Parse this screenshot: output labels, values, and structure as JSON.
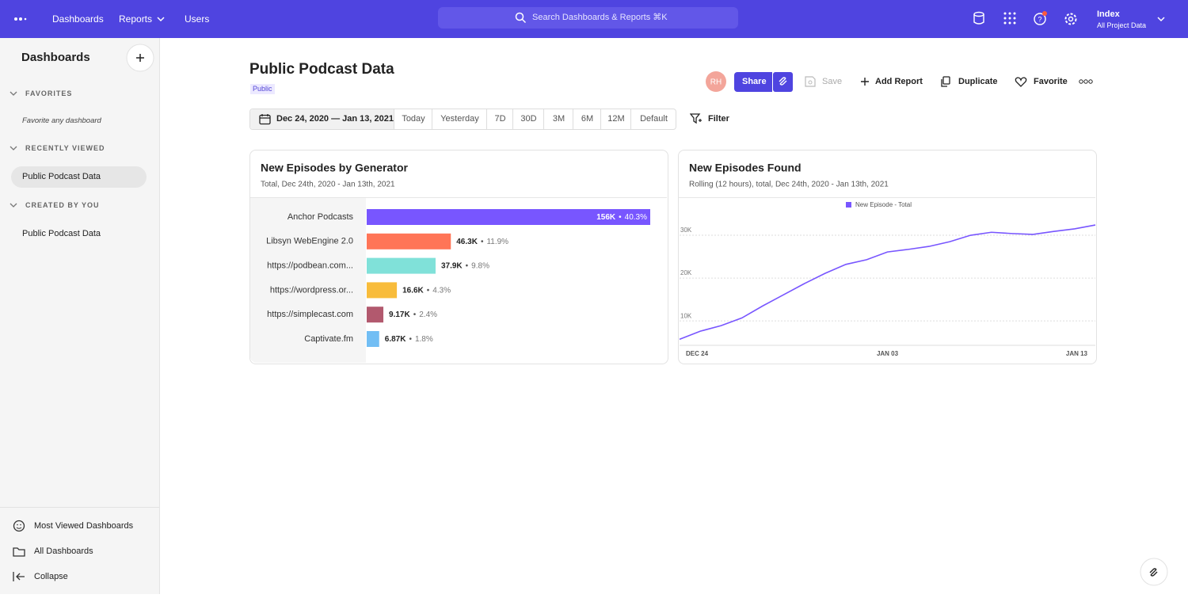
{
  "topbar": {
    "nav": [
      "Dashboards",
      "Reports",
      "Users"
    ],
    "search": "Search Dashboards & Reports ⌘K",
    "project": {
      "name": "Index",
      "scope": "All Project Data"
    }
  },
  "sidebar": {
    "title": "Dashboards",
    "sections": [
      {
        "heading": "FAVORITES",
        "items": [
          "Favorite any dashboard"
        ]
      },
      {
        "heading": "RECENTLY VIEWED",
        "items": [
          "Public Podcast Data"
        ]
      },
      {
        "heading": "CREATED BY YOU",
        "items": [
          "Public Podcast Data"
        ]
      }
    ],
    "footer": [
      "Most Viewed Dashboards",
      "All Dashboards",
      "Collapse"
    ]
  },
  "header": {
    "title": "Public Podcast Data",
    "badge": "Public",
    "avatar": "RH",
    "actions": [
      "Share",
      "Save",
      "Add Report",
      "Duplicate",
      "Favorite"
    ]
  },
  "date_bar": {
    "range": "Dec 24, 2020 — Jan 13, 2021",
    "presets": [
      "Today",
      "Yesterday",
      "7D",
      "30D",
      "3M",
      "6M",
      "12M",
      "Default"
    ],
    "filter": "Filter"
  },
  "chart_data": [
    {
      "type": "bar",
      "orientation": "horizontal",
      "title": "New Episodes by Generator",
      "subtitle": "Total, Dec 24th, 2020 - Jan 13th, 2021",
      "categories": [
        "Anchor Podcasts",
        "Libsyn WebEngine 2.0",
        "https://podbean.com...",
        "https://wordpress.or...",
        "https://simplecast.com",
        "Captivate.fm"
      ],
      "values": [
        156000,
        46300,
        37900,
        16600,
        9170,
        6870
      ],
      "value_labels": [
        "156K",
        "46.3K",
        "37.9K",
        "16.6K",
        "9.17K",
        "6.87K"
      ],
      "percents": [
        40.3,
        11.9,
        9.8,
        4.3,
        2.4,
        1.8
      ],
      "percent_labels": [
        "40.3%",
        "11.9%",
        "9.8%",
        "4.3%",
        "2.4%",
        "1.8%"
      ],
      "separator": "•",
      "colors": [
        "#7856ff",
        "#ff7557",
        "#80e1d9",
        "#f8bc3b",
        "#b2596e",
        "#72bef4"
      ]
    },
    {
      "type": "line",
      "title": "New Episodes Found",
      "subtitle": "Rolling (12 hours), total, Dec 24th, 2020 - Jan 13th, 2021",
      "categories": [
        "DEC 24",
        null,
        null,
        null,
        null,
        null,
        null,
        null,
        null,
        null,
        "JAN 03",
        null,
        null,
        null,
        null,
        null,
        null,
        null,
        null,
        null,
        "JAN 13"
      ],
      "series": [
        {
          "name": "New Episode - Total",
          "color": "#7856ff",
          "values": [
            5700,
            7600,
            8900,
            10700,
            13500,
            16100,
            18700,
            21100,
            23200,
            24300,
            26100,
            26700,
            27400,
            28500,
            30000,
            30700,
            30400,
            30200,
            30900,
            31500,
            32400
          ]
        }
      ],
      "ylim": [
        4300,
        35000
      ],
      "yticks": [
        {
          "value": 10000,
          "label": "10K"
        },
        {
          "value": 20000,
          "label": "20K"
        },
        {
          "value": 30000,
          "label": "30K"
        }
      ],
      "grid": true,
      "legend": "top"
    }
  ]
}
